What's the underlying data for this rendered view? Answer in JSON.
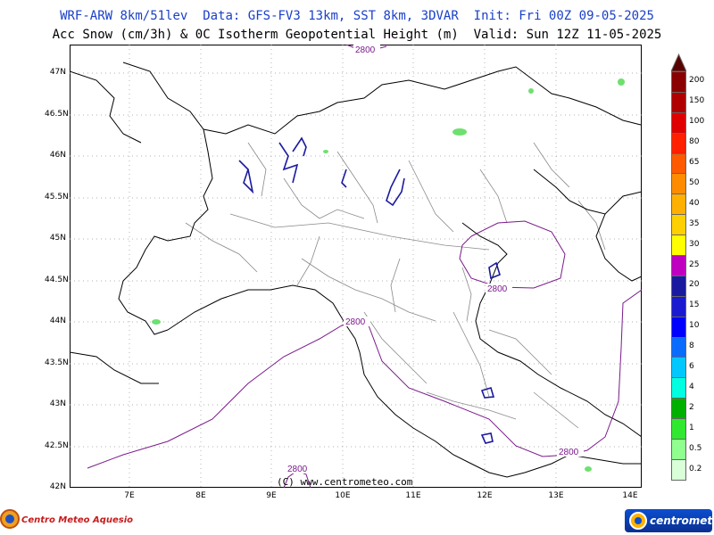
{
  "header": {
    "line1": "WRF-ARW 8km/51lev  Data: GFS-FV3 13km, SST 8km, 3DVAR  Init: Fri 00Z 09-05-2025",
    "line2": "Acc Snow (cm/3h) & 0C Isotherm Geopotential Height (m)  Valid: Sun 12Z 11-05-2025"
  },
  "map": {
    "latitude_labels": [
      "47N",
      "46.5N",
      "46N",
      "45.5N",
      "45N",
      "44.5N",
      "44N",
      "43.5N",
      "43N",
      "42.5N",
      "42N"
    ],
    "longitude_labels": [
      "7E",
      "8E",
      "9E",
      "10E",
      "11E",
      "12E",
      "13E",
      "14E"
    ],
    "contour_labels": [
      "2800",
      "2800",
      "2800",
      "2800",
      "2800"
    ],
    "copyright": "(C) www.centrometeo.com"
  },
  "colorbar": {
    "labels": [
      "200",
      "150",
      "100",
      "80",
      "65",
      "50",
      "40",
      "35",
      "30",
      "25",
      "20",
      "15",
      "10",
      "8",
      "6",
      "4",
      "2",
      "1",
      "0.5",
      "0.2"
    ],
    "colors": [
      "#8b0000",
      "#b00000",
      "#e00000",
      "#ff2000",
      "#ff5a00",
      "#ff8c00",
      "#ffb000",
      "#ffd000",
      "#ffff00",
      "#c000c0",
      "#1a1aa0",
      "#1a1ad0",
      "#0000ff",
      "#0a6cff",
      "#00c8ff",
      "#00ffe0",
      "#00b000",
      "#30e830",
      "#90ff90",
      "#d8ffd8"
    ]
  },
  "logos": {
    "left_text": "Centro Meteo Aquesio",
    "right_text": "centrometeo"
  }
}
